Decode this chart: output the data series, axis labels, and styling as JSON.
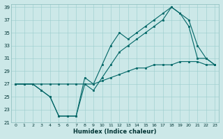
{
  "xlabel": "Humidex (Indice chaleur)",
  "xlim": [
    -0.5,
    23.5
  ],
  "ylim": [
    21,
    39.5
  ],
  "xticks": [
    0,
    1,
    2,
    3,
    4,
    5,
    6,
    7,
    8,
    9,
    10,
    11,
    12,
    13,
    14,
    15,
    16,
    17,
    18,
    19,
    20,
    21,
    22,
    23
  ],
  "yticks": [
    21,
    23,
    25,
    27,
    29,
    31,
    33,
    35,
    37,
    39
  ],
  "bg_color": "#cce8e8",
  "line_color": "#006666",
  "grid_color": "#99cccc",
  "line1_x": [
    0,
    1,
    2,
    3,
    4,
    5,
    6,
    7,
    8,
    9,
    10,
    11,
    12,
    13,
    14,
    15,
    16,
    17,
    18,
    19,
    20,
    21,
    22,
    23
  ],
  "line1_y": [
    27,
    27,
    27,
    26,
    25,
    22,
    22,
    22,
    27,
    26,
    28,
    30,
    32,
    33,
    34,
    35,
    36,
    37,
    39,
    38,
    37,
    33,
    31,
    30
  ],
  "line2_x": [
    0,
    1,
    2,
    3,
    4,
    5,
    6,
    7,
    8,
    9,
    10,
    11,
    12,
    13,
    14,
    15,
    16,
    17,
    18,
    19,
    20,
    21,
    22,
    23
  ],
  "line2_y": [
    27,
    27,
    27,
    27,
    27,
    27,
    27,
    27,
    27,
    27,
    27.5,
    28,
    28.5,
    29,
    29.5,
    29.5,
    30,
    30,
    30,
    30.5,
    30.5,
    30.5,
    30,
    30
  ],
  "line3_x": [
    0,
    1,
    2,
    3,
    4,
    5,
    6,
    7,
    8,
    9,
    10,
    11,
    12,
    13,
    14,
    15,
    16,
    17,
    18,
    19,
    20,
    21,
    22,
    23
  ],
  "line3_y": [
    27,
    27,
    27,
    26,
    25,
    22,
    22,
    22,
    28,
    27,
    30,
    33,
    35,
    34,
    35,
    36,
    37,
    38,
    39,
    38,
    36,
    31,
    31,
    30
  ]
}
